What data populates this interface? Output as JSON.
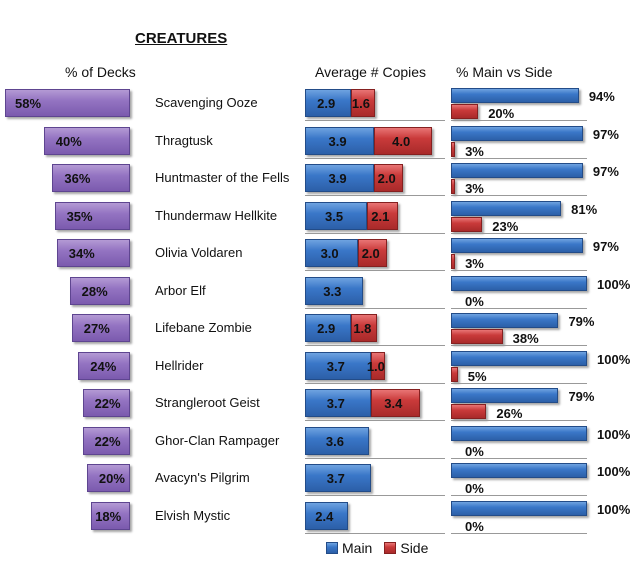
{
  "chart_data": {
    "type": "bar",
    "title": "CREATURES",
    "panels": [
      {
        "name": "pct_decks",
        "header": "% of Decks",
        "orientation": "horizontal-reversed",
        "unit": "%",
        "xlim": [
          0,
          60
        ]
      },
      {
        "name": "avg_copies",
        "header": "Average # Copies",
        "orientation": "stacked-horizontal",
        "xlim": [
          0,
          8
        ]
      },
      {
        "name": "main_vs_side",
        "header": "% Main vs Side",
        "orientation": "grouped-horizontal",
        "unit": "%",
        "xlim": [
          0,
          100
        ]
      }
    ],
    "categories": [
      "Scavenging Ooze",
      "Thragtusk",
      "Huntmaster of the Fells",
      "Thundermaw Hellkite",
      "Olivia Voldaren",
      "Arbor Elf",
      "Lifebane Zombie",
      "Hellrider",
      "Strangleroot Geist",
      "Ghor-Clan Rampager",
      "Avacyn's Pilgrim",
      "Elvish Mystic"
    ],
    "pct_decks": [
      58,
      40,
      36,
      35,
      34,
      28,
      27,
      24,
      22,
      22,
      20,
      18
    ],
    "avg_copies": {
      "series": [
        {
          "name": "Main",
          "values": [
            2.9,
            3.9,
            3.9,
            3.5,
            3.0,
            3.3,
            2.9,
            3.7,
            3.7,
            3.6,
            3.7,
            2.4
          ]
        },
        {
          "name": "Side",
          "values": [
            1.6,
            4.0,
            2.0,
            2.1,
            2.0,
            null,
            1.8,
            1.0,
            3.4,
            null,
            null,
            null
          ]
        }
      ]
    },
    "main_vs_side": {
      "series": [
        {
          "name": "Main",
          "values": [
            94,
            97,
            97,
            81,
            97,
            100,
            79,
            100,
            79,
            100,
            100,
            100
          ]
        },
        {
          "name": "Side",
          "values": [
            20,
            3,
            3,
            23,
            3,
            0,
            38,
            5,
            26,
            0,
            0,
            0
          ]
        }
      ]
    },
    "legend": {
      "position": "bottom",
      "entries": [
        "Main",
        "Side"
      ]
    },
    "colors": {
      "pct": "#9474c2",
      "main": "#3a77c8",
      "side": "#c93a3a"
    }
  }
}
